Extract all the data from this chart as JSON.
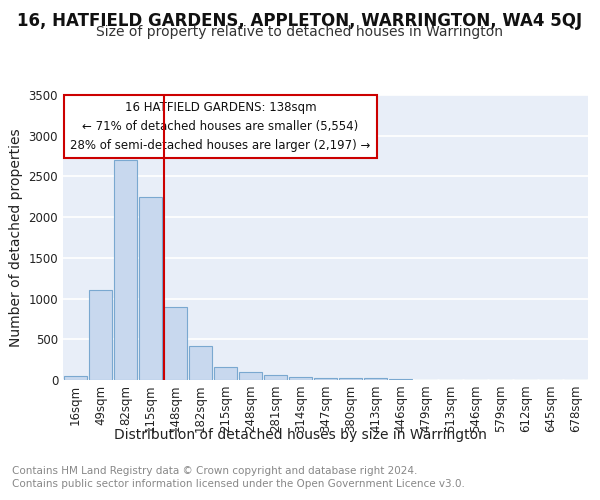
{
  "title": "16, HATFIELD GARDENS, APPLETON, WARRINGTON, WA4 5QJ",
  "subtitle": "Size of property relative to detached houses in Warrington",
  "xlabel": "Distribution of detached houses by size in Warrington",
  "ylabel": "Number of detached properties",
  "categories": [
    "16sqm",
    "49sqm",
    "82sqm",
    "115sqm",
    "148sqm",
    "182sqm",
    "215sqm",
    "248sqm",
    "281sqm",
    "314sqm",
    "347sqm",
    "380sqm",
    "413sqm",
    "446sqm",
    "479sqm",
    "513sqm",
    "546sqm",
    "579sqm",
    "612sqm",
    "645sqm",
    "678sqm"
  ],
  "values": [
    50,
    1100,
    2700,
    2250,
    900,
    420,
    160,
    100,
    60,
    35,
    30,
    25,
    30,
    10,
    5,
    3,
    2,
    2,
    1,
    1,
    1
  ],
  "bar_color": "#c8d8ee",
  "bar_edge_color": "#7aa8d0",
  "red_line_label": "16 HATFIELD GARDENS: 138sqm",
  "annotation_line1": "← 71% of detached houses are smaller (5,554)",
  "annotation_line2": "28% of semi-detached houses are larger (2,197) →",
  "annotation_box_color": "#ffffff",
  "annotation_box_edge_color": "#cc0000",
  "ylim": [
    0,
    3500
  ],
  "yticks": [
    0,
    500,
    1000,
    1500,
    2000,
    2500,
    3000,
    3500
  ],
  "footer_line1": "Contains HM Land Registry data © Crown copyright and database right 2024.",
  "footer_line2": "Contains public sector information licensed under the Open Government Licence v3.0.",
  "bg_color": "#ffffff",
  "plot_bg_color": "#e8eef8",
  "grid_color": "#ffffff",
  "title_fontsize": 12,
  "subtitle_fontsize": 10,
  "axis_label_fontsize": 10,
  "tick_fontsize": 8.5,
  "footer_fontsize": 7.5
}
